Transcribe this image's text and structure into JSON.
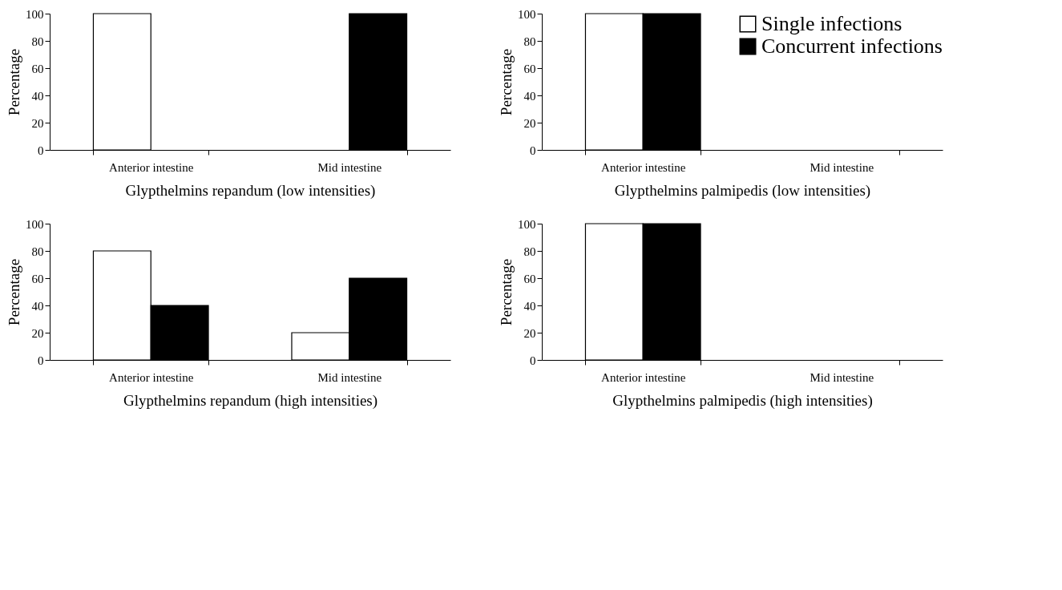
{
  "chart_data": [
    {
      "type": "bar",
      "xlabel": "Glypthelmins repandum (low intensities)",
      "ylabel": "Percentage",
      "categories": [
        "Anterior intestine",
        "Mid intestine"
      ],
      "ylim": [
        0,
        100
      ],
      "yticks": [
        0,
        20,
        40,
        60,
        80,
        100
      ],
      "grid": false,
      "series": [
        {
          "color": "#ffffff",
          "values": [
            100,
            0
          ]
        },
        {
          "color": "#000000",
          "values": [
            0,
            100
          ]
        }
      ]
    },
    {
      "type": "bar",
      "xlabel": "Glypthelmins palmipedis (low intensities)",
      "ylabel": "Percentage",
      "categories": [
        "Anterior intestine",
        "Mid intestine"
      ],
      "ylim": [
        0,
        100
      ],
      "yticks": [
        0,
        20,
        40,
        60,
        80,
        100
      ],
      "grid": false,
      "legend": "top right",
      "series": [
        {
          "name": "Single infections",
          "color": "#ffffff",
          "values": [
            100,
            0
          ]
        },
        {
          "name": "Concurrent infections",
          "color": "#000000",
          "values": [
            100,
            0
          ]
        }
      ]
    },
    {
      "type": "bar",
      "xlabel": "Glypthelmins repandum (high intensities)",
      "ylabel": "Percentage",
      "categories": [
        "Anterior intestine",
        "Mid intestine"
      ],
      "ylim": [
        0,
        100
      ],
      "yticks": [
        0,
        20,
        40,
        60,
        80,
        100
      ],
      "grid": false,
      "series": [
        {
          "color": "#ffffff",
          "values": [
            80,
            20
          ]
        },
        {
          "color": "#000000",
          "values": [
            40,
            60
          ]
        }
      ]
    },
    {
      "type": "bar",
      "xlabel": "Glypthelmins palmipedis (high intensities)",
      "ylabel": "Percentage",
      "categories": [
        "Anterior intestine",
        "Mid intestine"
      ],
      "ylim": [
        0,
        100
      ],
      "yticks": [
        0,
        20,
        40,
        60,
        80,
        100
      ],
      "grid": false,
      "series": [
        {
          "color": "#ffffff",
          "values": [
            100,
            0
          ]
        },
        {
          "color": "#000000",
          "values": [
            100,
            0
          ]
        }
      ]
    }
  ]
}
